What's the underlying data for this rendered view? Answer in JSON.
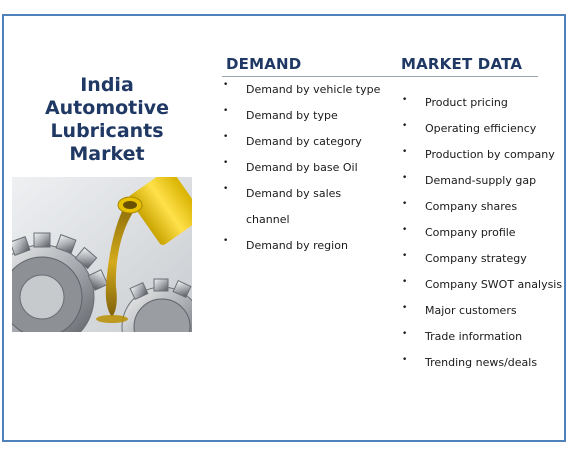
{
  "title_lines": [
    "India",
    "Automotive",
    "Lubricants",
    "Market"
  ],
  "demand": {
    "heading": "DEMAND",
    "items": [
      "Demand by vehicle type",
      "Demand by type",
      "Demand by category",
      "Demand by base Oil",
      "Demand by sales",
      "channel",
      "Demand by region"
    ]
  },
  "market_data": {
    "heading": "MARKET DATA",
    "items": [
      "Product pricing",
      "Operating efficiency",
      "Production by company",
      "Demand-supply gap",
      "Company shares",
      "Company profile",
      "Company strategy",
      "Company SWOT analysis",
      "Major customers",
      "Trade information",
      "Trending news/deals"
    ]
  },
  "bullet_char": "•",
  "colors": {
    "border": "#4f81bd",
    "heading": "#1f3864",
    "text": "#1a1a1a"
  },
  "photo_icon": "oil-pouring-on-gears-image"
}
